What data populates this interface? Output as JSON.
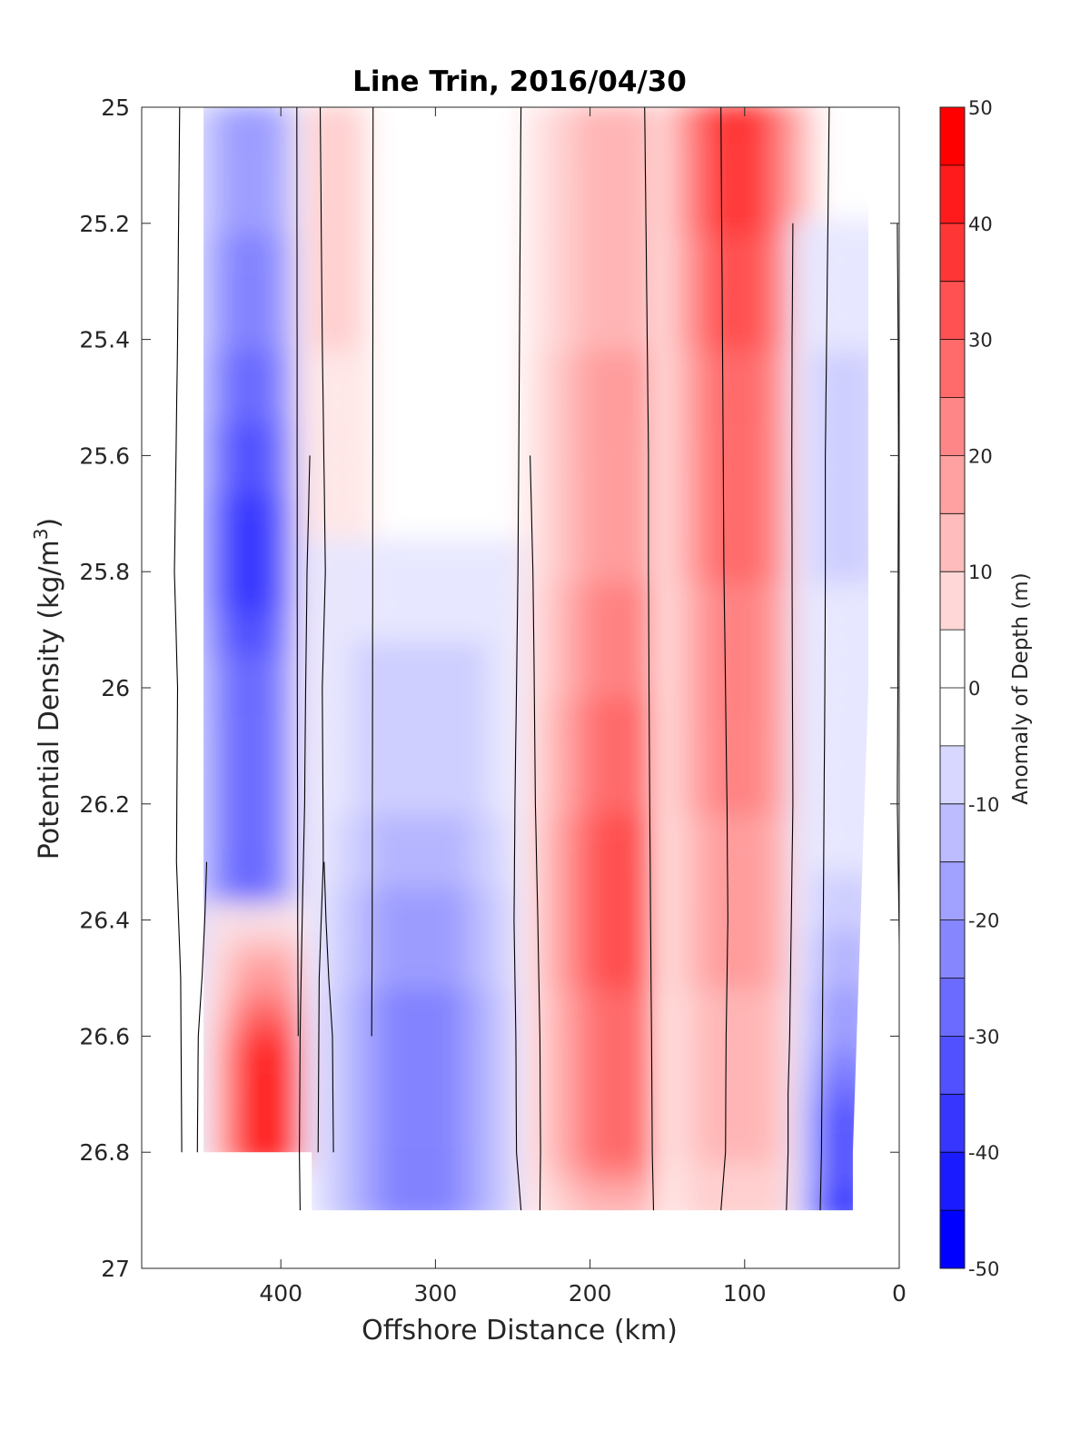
{
  "chart_data": {
    "type": "heatmap",
    "subtype": "filled-contour section",
    "title": "Line Trin, 2016/04/30",
    "xlabel": "Offshore Distance (km)",
    "ylabel": "Potential Density (kg/m",
    "ylabel_superscript": "3",
    "ylabel_suffix": ")",
    "colorbar_label": "Anomaly of Depth (m)",
    "xlim": [
      490,
      0
    ],
    "x_reversed": true,
    "ylim": [
      25,
      27
    ],
    "y_reversed": true,
    "x_ticks": [
      400,
      300,
      200,
      100,
      0
    ],
    "x_tick_labels": [
      "400",
      "300",
      "200",
      "100",
      "0"
    ],
    "y_ticks": [
      25,
      25.2,
      25.4,
      25.6,
      25.8,
      26,
      26.2,
      26.4,
      26.6,
      26.8,
      27
    ],
    "y_tick_labels": [
      "25",
      "25.2",
      "25.4",
      "25.6",
      "25.8",
      "26",
      "26.2",
      "26.4",
      "26.6",
      "26.8",
      "27"
    ],
    "colorbar_range": [
      -50,
      50
    ],
    "colorbar_step": 5,
    "colorbar_ticks": [
      50,
      40,
      30,
      20,
      10,
      0,
      -10,
      -20,
      -30,
      -40,
      -50
    ],
    "colorbar_tick_labels": [
      "50",
      "40",
      "30",
      "20",
      "10",
      "0",
      "-10",
      "-20",
      "-30",
      "-40",
      "-50"
    ],
    "colormap": {
      "negative": "#0000ff",
      "zero": "#ffffff",
      "positive": "#ff0000"
    },
    "zero_contour": "black",
    "sigma": [
      25,
      25.2,
      25.4,
      25.6,
      25.8,
      26,
      26.2,
      26.4,
      26.5,
      26.6,
      26.7,
      26.8,
      26.9
    ],
    "bands": [
      {
        "name": "offshore-negative",
        "center_km": 420,
        "half_width_km": 45,
        "depth_km": [
          [
            25,
            20
          ],
          [
            25.4,
            30
          ],
          [
            25.8,
            45
          ],
          [
            26.0,
            30
          ],
          [
            26.3,
            35
          ],
          [
            26.5,
            15
          ],
          [
            26.8,
            10
          ]
        ]
      },
      {
        "name": "offshore-deep-positive",
        "center_km": 410,
        "half_width_km": 40,
        "depth_km": [
          [
            26.3,
            0
          ],
          [
            26.4,
            10
          ],
          [
            26.5,
            25
          ],
          [
            26.6,
            45
          ],
          [
            26.8,
            50
          ]
        ]
      },
      {
        "name": "weak-positive-370",
        "center_km": 365,
        "half_width_km": 25,
        "depth_km": [
          [
            25,
            12
          ],
          [
            25.4,
            10
          ],
          [
            26.0,
            8
          ],
          [
            26.2,
            6
          ],
          [
            26.4,
            5
          ],
          [
            26.6,
            0
          ]
        ]
      },
      {
        "name": "mid-negative",
        "center_km": 310,
        "half_width_km": 75,
        "depth_km": [
          [
            25.6,
            0
          ],
          [
            25.8,
            8
          ],
          [
            26.0,
            12
          ],
          [
            26.2,
            15
          ],
          [
            26.4,
            22
          ],
          [
            26.6,
            28
          ],
          [
            26.8,
            30
          ],
          [
            26.9,
            28
          ]
        ]
      },
      {
        "name": "red-core-180",
        "center_km": 180,
        "half_width_km": 65,
        "depth_km": [
          [
            25,
            15
          ],
          [
            25.4,
            20
          ],
          [
            25.8,
            25
          ],
          [
            26.0,
            30
          ],
          [
            26.2,
            35
          ],
          [
            26.4,
            38
          ],
          [
            26.6,
            32
          ],
          [
            26.8,
            30
          ],
          [
            26.9,
            15
          ]
        ]
      },
      {
        "name": "red-core-105",
        "center_km": 105,
        "half_width_km": 55,
        "depth_km": [
          [
            25,
            45
          ],
          [
            25.2,
            40
          ],
          [
            25.4,
            35
          ],
          [
            25.6,
            30
          ],
          [
            25.8,
            30
          ],
          [
            26.0,
            28
          ],
          [
            26.2,
            25
          ],
          [
            26.4,
            22
          ],
          [
            26.6,
            18
          ],
          [
            26.8,
            15
          ],
          [
            26.9,
            10
          ]
        ]
      },
      {
        "name": "nearshore-negative",
        "center_km": 35,
        "half_width_km": 35,
        "depth_km": [
          [
            25.2,
            5
          ],
          [
            25.4,
            10
          ],
          [
            25.6,
            12
          ],
          [
            26.0,
            8
          ],
          [
            26.2,
            5
          ],
          [
            26.4,
            15
          ],
          [
            26.6,
            25
          ],
          [
            26.7,
            35
          ],
          [
            26.8,
            35
          ],
          [
            26.9,
            45
          ]
        ]
      }
    ],
    "data_extent": [
      {
        "sigma": 25,
        "x_min": 20,
        "x_max": 450
      },
      {
        "sigma": 26,
        "x_min": 20,
        "x_max": 450
      },
      {
        "sigma": 26.8,
        "x_min": 30,
        "x_max": 450
      },
      {
        "sigma": 26.9,
        "x_min": 30,
        "x_max": 380
      }
    ]
  }
}
